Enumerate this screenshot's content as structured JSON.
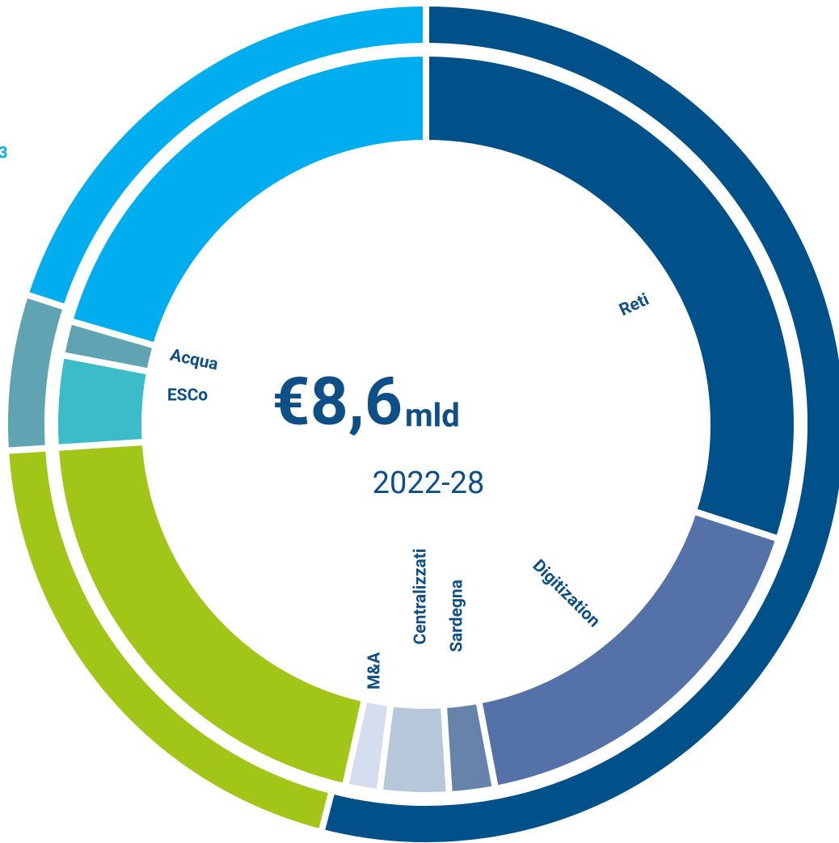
{
  "chart_data": {
    "type": "donut",
    "center_value": "€8,6",
    "center_unit": "mld",
    "subtitle": "2022-28",
    "partial_text": "3",
    "outer": {
      "values": [
        54,
        20,
        6,
        20
      ],
      "colors": [
        "#00508a",
        "#a2c617",
        "#60a3b3",
        "#00aeef"
      ]
    },
    "inner": {
      "categories": [
        "Reti",
        "Digitization",
        "Sardegna",
        "Centralizzati",
        "M&A",
        null,
        "ESCo",
        "Acqua",
        null
      ],
      "values": [
        30,
        17,
        2,
        3,
        1.5,
        20.5,
        4,
        1.5,
        20.5
      ],
      "colors": [
        "#00508a",
        "#5472a8",
        "#6883ab",
        "#b5c7d9",
        "#d4deee",
        "#a2c617",
        "#3bbcc8",
        "#60a3b3",
        "#00aeef"
      ]
    }
  }
}
